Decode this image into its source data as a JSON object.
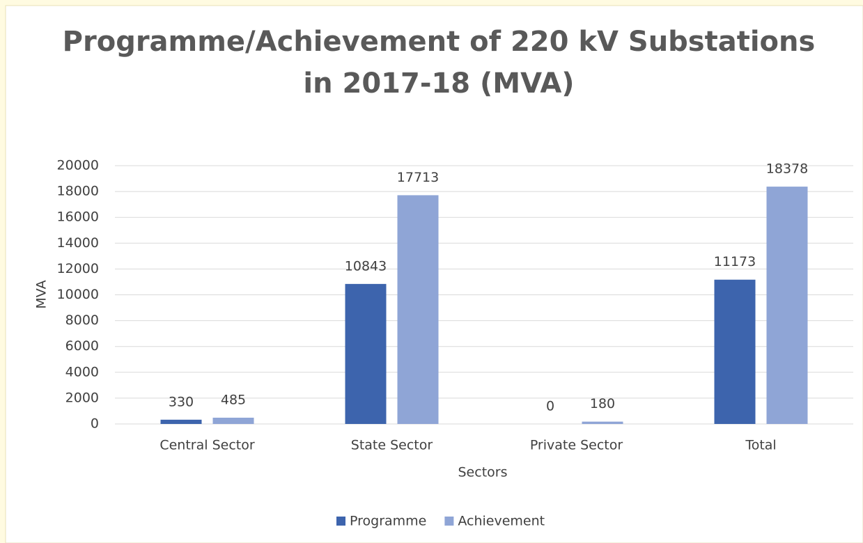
{
  "chart_data": {
    "type": "bar",
    "title": [
      "Programme/Achievement of 220 kV Substations",
      "in 2017-18 (MVA)"
    ],
    "x_label": "Sectors",
    "y_label": "MVA",
    "categories": [
      "Central Sector",
      "State Sector",
      "Private Sector",
      "Total"
    ],
    "series": [
      {
        "name": "Programme",
        "color": "#3d64ad",
        "values": [
          330,
          10843,
          0,
          11173
        ]
      },
      {
        "name": "Achievement",
        "color": "#8fa5d6",
        "values": [
          485,
          17713,
          180,
          18378
        ]
      }
    ],
    "ylim": [
      0,
      20000
    ],
    "yticks": [
      0,
      2000,
      4000,
      6000,
      8000,
      10000,
      12000,
      14000,
      16000,
      18000,
      20000
    ],
    "grid": true,
    "legend": "bottom"
  }
}
